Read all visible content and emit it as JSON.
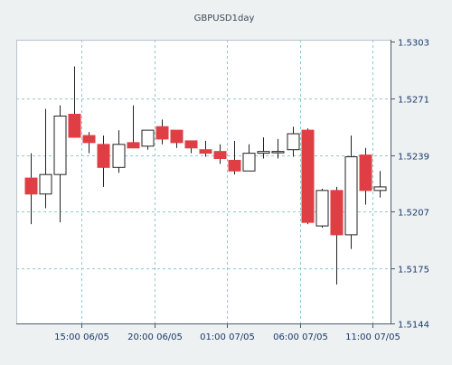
{
  "chart_data": {
    "type": "candlestick",
    "title": "GBPUSD1day",
    "xlabel": "",
    "ylabel": "",
    "ylim": [
      1.5144,
      1.5303
    ],
    "y_ticks": [
      "1.5303",
      "1.5271",
      "1.5239",
      "1.5207",
      "1.5175",
      "1.5144"
    ],
    "x_ticks": [
      "15:00 06/05",
      "20:00 06/05",
      "01:00 07/05",
      "06:00 07/05",
      "11:00 07/05"
    ],
    "grid": true,
    "colors": {
      "bull_fill": "#ffffff",
      "bear_fill": "#e03e45",
      "outline": "#222222",
      "grid": "#8fc9c9",
      "plot_bg": "#ffffff",
      "frame_bg": "#eef1f2"
    },
    "candles": [
      {
        "open": 1.5226,
        "high": 1.524,
        "low": 1.52,
        "close": 1.5217
      },
      {
        "open": 1.5217,
        "high": 1.5265,
        "low": 1.5209,
        "close": 1.5228
      },
      {
        "open": 1.5228,
        "high": 1.5267,
        "low": 1.5201,
        "close": 1.5261
      },
      {
        "open": 1.5262,
        "high": 1.5289,
        "low": 1.525,
        "close": 1.5249
      },
      {
        "open": 1.525,
        "high": 1.5252,
        "low": 1.524,
        "close": 1.5246
      },
      {
        "open": 1.5245,
        "high": 1.525,
        "low": 1.5221,
        "close": 1.5232
      },
      {
        "open": 1.5232,
        "high": 1.5253,
        "low": 1.5229,
        "close": 1.5245
      },
      {
        "open": 1.5246,
        "high": 1.5267,
        "low": 1.5243,
        "close": 1.5243
      },
      {
        "open": 1.5244,
        "high": 1.5253,
        "low": 1.5242,
        "close": 1.5253
      },
      {
        "open": 1.5255,
        "high": 1.5259,
        "low": 1.5245,
        "close": 1.5248
      },
      {
        "open": 1.5253,
        "high": 1.5253,
        "low": 1.5243,
        "close": 1.5246
      },
      {
        "open": 1.5247,
        "high": 1.5247,
        "low": 1.524,
        "close": 1.5243
      },
      {
        "open": 1.5242,
        "high": 1.5247,
        "low": 1.5238,
        "close": 1.524
      },
      {
        "open": 1.5241,
        "high": 1.5245,
        "low": 1.5234,
        "close": 1.5237
      },
      {
        "open": 1.5236,
        "high": 1.5247,
        "low": 1.5228,
        "close": 1.523
      },
      {
        "open": 1.523,
        "high": 1.5245,
        "low": 1.523,
        "close": 1.524
      },
      {
        "open": 1.524,
        "high": 1.5249,
        "low": 1.5237,
        "close": 1.5241
      },
      {
        "open": 1.5241,
        "high": 1.5248,
        "low": 1.5237,
        "close": 1.5241
      },
      {
        "open": 1.5242,
        "high": 1.5255,
        "low": 1.5238,
        "close": 1.5251
      },
      {
        "open": 1.5253,
        "high": 1.5254,
        "low": 1.52,
        "close": 1.5201
      },
      {
        "open": 1.5199,
        "high": 1.522,
        "low": 1.5198,
        "close": 1.5219
      },
      {
        "open": 1.5219,
        "high": 1.5221,
        "low": 1.5166,
        "close": 1.5194
      },
      {
        "open": 1.5194,
        "high": 1.525,
        "low": 1.5186,
        "close": 1.5238
      },
      {
        "open": 1.5239,
        "high": 1.5243,
        "low": 1.5211,
        "close": 1.5219
      },
      {
        "open": 1.5219,
        "high": 1.523,
        "low": 1.5215,
        "close": 1.5221
      }
    ]
  }
}
